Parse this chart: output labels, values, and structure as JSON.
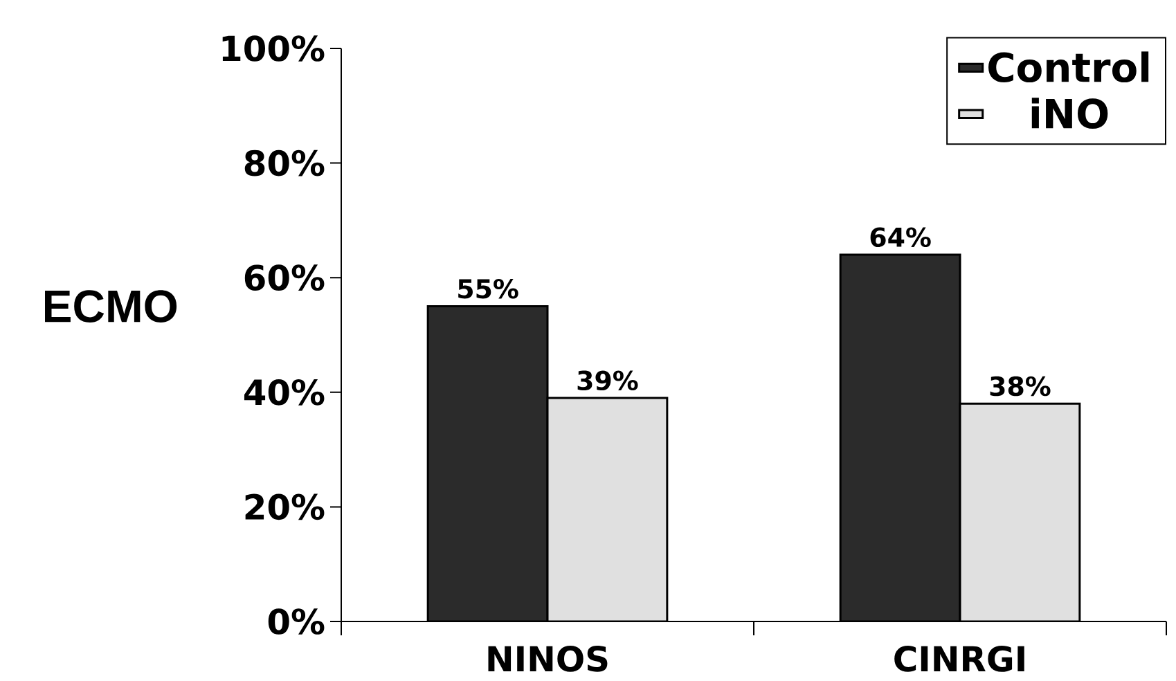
{
  "chart_data": {
    "type": "bar",
    "ylabel": "ECMO",
    "categories": [
      "NINOS",
      "CINRGI"
    ],
    "series": [
      {
        "name": "Control",
        "color": "#2b2b2b",
        "values": [
          55,
          64
        ],
        "value_labels": [
          "55%",
          "64%"
        ]
      },
      {
        "name": "iNO",
        "color": "#e0e0e0",
        "values": [
          39,
          38
        ],
        "value_labels": [
          "39%",
          "38%"
        ]
      }
    ],
    "ylim": [
      0,
      100
    ],
    "yticks": [
      {
        "value": 0,
        "label": "0%"
      },
      {
        "value": 20,
        "label": "20%"
      },
      {
        "value": 40,
        "label": "40%"
      },
      {
        "value": 60,
        "label": "60%"
      },
      {
        "value": 80,
        "label": "80%"
      },
      {
        "value": 100,
        "label": "100%"
      }
    ],
    "legend": "top right",
    "grid": false
  }
}
